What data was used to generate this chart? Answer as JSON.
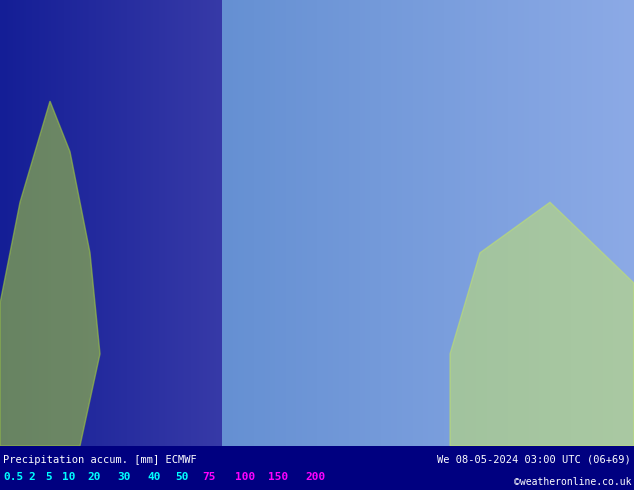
{
  "title_left": "Precipitation accum. [mm] ECMWF",
  "title_right": "We 08-05-2024 03:00 UTC (06+69)",
  "copyright": "©weatheronline.co.uk",
  "colorbar_values": [
    0.5,
    2,
    5,
    10,
    20,
    30,
    40,
    50,
    75,
    100,
    150,
    200
  ],
  "colorbar_colors": [
    "#00ffff",
    "#00bfff",
    "#0080ff",
    "#0040ff",
    "#8000ff",
    "#ff00ff",
    "#ff0080",
    "#ff0000",
    "#ff8000",
    "#ffff00",
    "#ffffff"
  ],
  "colorbar_text_colors": [
    "#00ffff",
    "#00ffff",
    "#00ffff",
    "#00ffff",
    "#00ffff",
    "#ff00ff",
    "#ff00ff",
    "#ff00ff",
    "#ff00ff",
    "#ff00ff",
    "#ff00ff"
  ],
  "bg_color": "#0050c0",
  "map_bg": "#4090e0",
  "bottom_bar_color": "#000080",
  "bottom_text_color": "#ffffff",
  "legend_values_display": [
    "0.5",
    "2",
    "5",
    "10",
    "20",
    "30",
    "40",
    "50",
    "75",
    "100",
    "150",
    "200"
  ],
  "legend_colors_display": [
    "#00ffff",
    "#00e5ff",
    "#00bfff",
    "#0096ff",
    "#4040ff",
    "#8000c0",
    "#c000ff",
    "#ff00ff",
    "#ff0080",
    "#ff4040",
    "#ff8000",
    "#ffff00"
  ],
  "figsize": [
    6.34,
    4.9
  ],
  "dpi": 100,
  "map_image_placeholder": true
}
